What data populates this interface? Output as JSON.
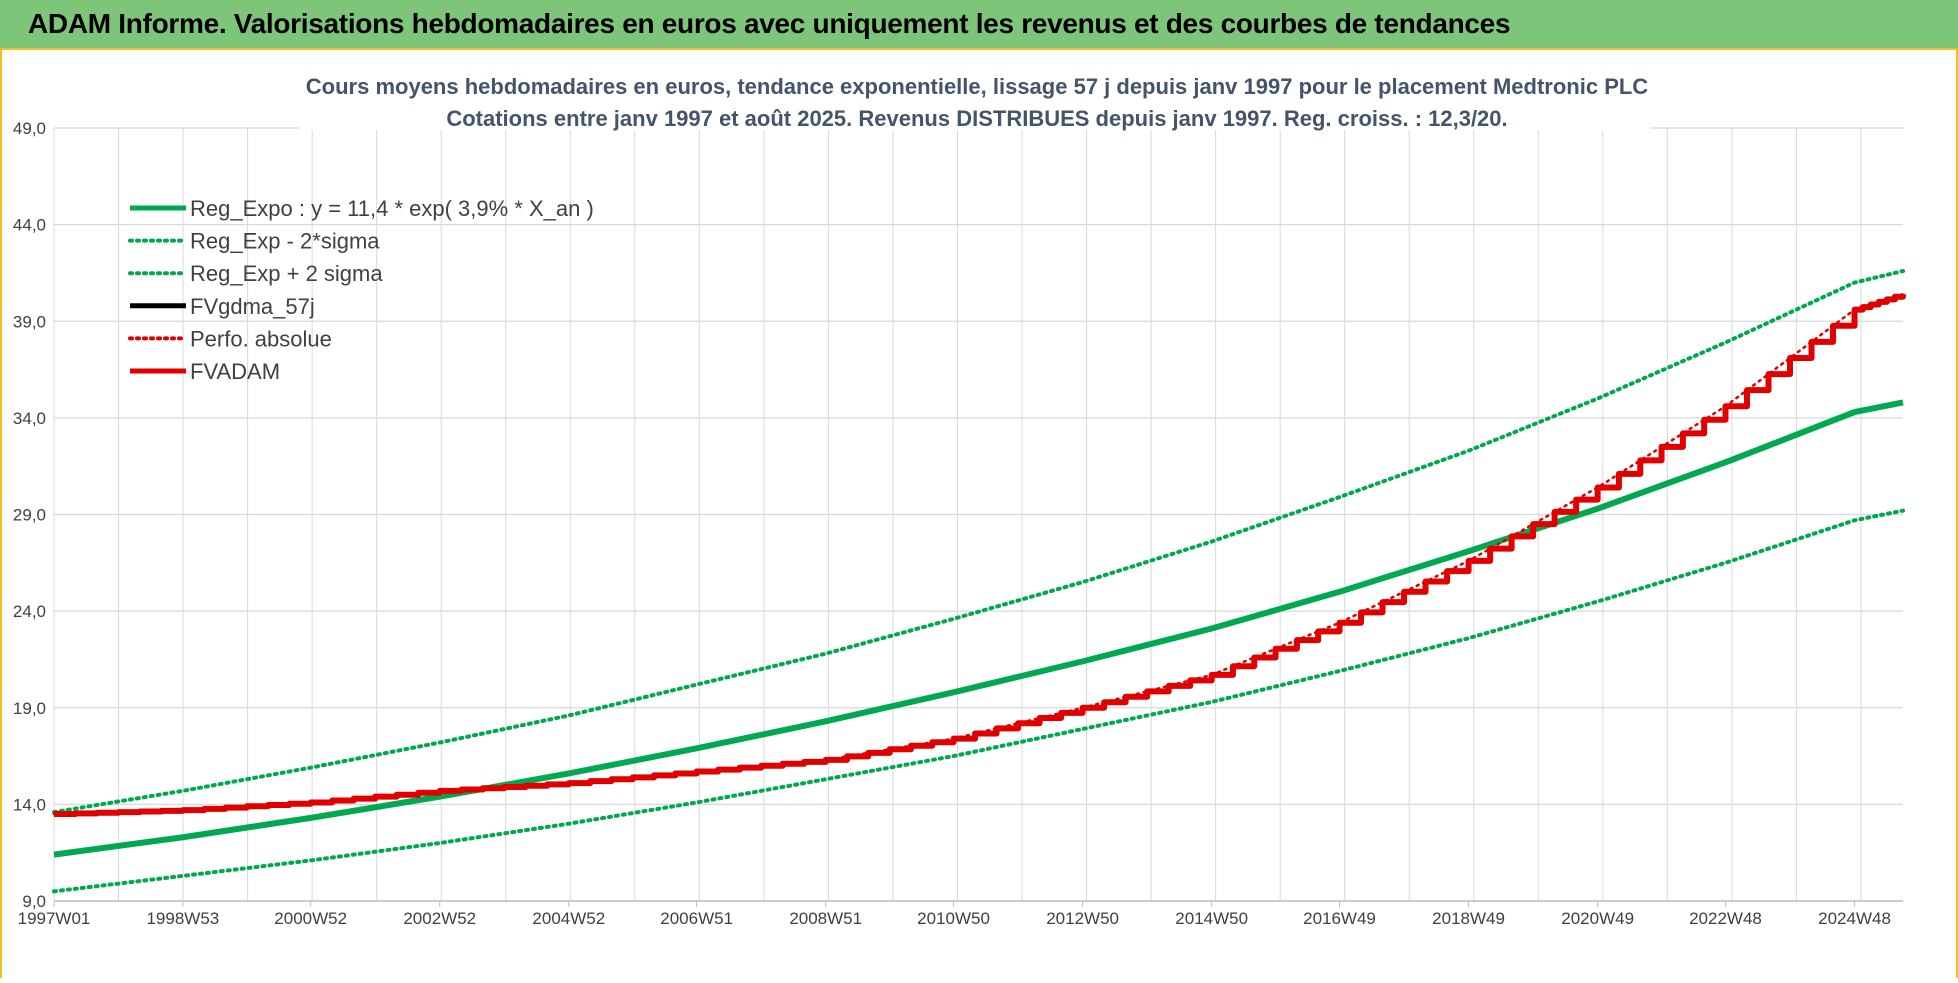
{
  "banner": {
    "title": "ADAM Informe. Valorisations hebdomadaires en euros avec uniquement les revenus et des courbes de tendances"
  },
  "colors": {
    "banner_bg": "#7dc679",
    "accent": "#f0c020",
    "green": "#00a84f",
    "red": "#e00000",
    "black": "#000000",
    "grid": "#d9d9d9"
  },
  "chart_data": {
    "type": "line",
    "title_line1": "Cours moyens hebdomadaires en euros, tendance exponentielle, lissage 57 j depuis janv 1997 pour le placement Medtronic PLC",
    "title_line2": "Cotations entre janv 1997 et août 2025.  Revenus DISTRIBUES depuis janv 1997. Reg. croiss. : 12,3/20.",
    "ylim": [
      9,
      49
    ],
    "y_ticks": [
      "49,0",
      "44,0",
      "39,0",
      "34,0",
      "29,0",
      "24,0",
      "19,0",
      "14,0",
      "9,0"
    ],
    "x_ticks": [
      "1997W01",
      "1998W53",
      "2000W52",
      "2002W52",
      "2004W52",
      "2006W51",
      "2008W51",
      "2010W50",
      "2012W50",
      "2014W50",
      "2016W49",
      "2018W49",
      "2020W49",
      "2022W48",
      "2024W48"
    ],
    "xlim": [
      "1997W01",
      "2025W35"
    ],
    "grid": true,
    "legend_position": "top-left",
    "x": [
      "1997W01",
      "1998W53",
      "2000W52",
      "2002W52",
      "2004W52",
      "2006W51",
      "2008W51",
      "2010W50",
      "2012W50",
      "2014W50",
      "2016W49",
      "2018W49",
      "2020W49",
      "2022W48",
      "2024W48",
      "2025W35"
    ],
    "series": [
      {
        "name": "Reg_Expo : y = 11,4 * exp( 3,9% *  X_an )",
        "style": "solid",
        "color": "#00a84f",
        "values": [
          11.4,
          12.3,
          13.3,
          14.4,
          15.6,
          16.9,
          18.3,
          19.8,
          21.4,
          23.1,
          25.0,
          27.1,
          29.3,
          31.7,
          34.3,
          34.8
        ]
      },
      {
        "name": "Reg_Exp - 2*sigma",
        "style": "dotted",
        "color": "#00a84f",
        "values": [
          9.5,
          10.3,
          11.1,
          12.0,
          13.0,
          14.1,
          15.3,
          16.5,
          17.9,
          19.3,
          20.9,
          22.6,
          24.5,
          26.5,
          28.7,
          29.2
        ]
      },
      {
        "name": "Reg_Exp + 2 sigma",
        "style": "dotted",
        "color": "#00a84f",
        "values": [
          13.6,
          14.7,
          15.9,
          17.2,
          18.6,
          20.2,
          21.8,
          23.6,
          25.5,
          27.6,
          29.9,
          32.3,
          35.0,
          37.9,
          41.0,
          41.6
        ]
      },
      {
        "name": "FVgdma_57j",
        "style": "solid",
        "color": "#000000",
        "values": [
          13.5,
          13.7,
          14.1,
          14.7,
          15.1,
          15.7,
          16.3,
          17.4,
          19.0,
          20.7,
          23.4,
          26.6,
          30.4,
          34.6,
          39.6,
          40.4
        ]
      },
      {
        "name": "Perfo. absolue",
        "style": "dotted",
        "color": "#e00000",
        "values": [
          13.5,
          13.7,
          14.1,
          14.7,
          15.1,
          15.7,
          16.3,
          17.4,
          19.0,
          20.7,
          23.4,
          26.6,
          30.4,
          34.6,
          39.6,
          40.4
        ]
      },
      {
        "name": "FVADAM",
        "style": "solid",
        "color": "#e00000",
        "values": [
          13.5,
          13.7,
          14.1,
          14.7,
          15.1,
          15.7,
          16.3,
          17.4,
          19.0,
          20.7,
          23.4,
          26.6,
          30.4,
          34.6,
          39.6,
          40.4
        ]
      }
    ]
  }
}
